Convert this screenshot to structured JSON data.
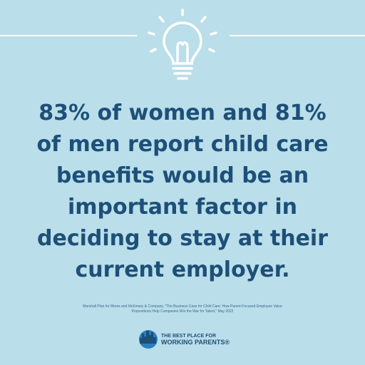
{
  "statement": [
    "83% of women and 81%",
    "of men report child care",
    "benefits would be an",
    "important factor in",
    "deciding to stay at their",
    "current employer."
  ],
  "citation": [
    "Marshall Plan for Moms and McKinsey & Company, \"The Business Case for Child Care: How Parent-Focused Employee Value",
    "Propositions Help Companies Win the War for Talent,\" May 2022"
  ],
  "logo": {
    "line1": "THE BEST PLACE FOR",
    "line2": "WORKING PARENTS®"
  }
}
